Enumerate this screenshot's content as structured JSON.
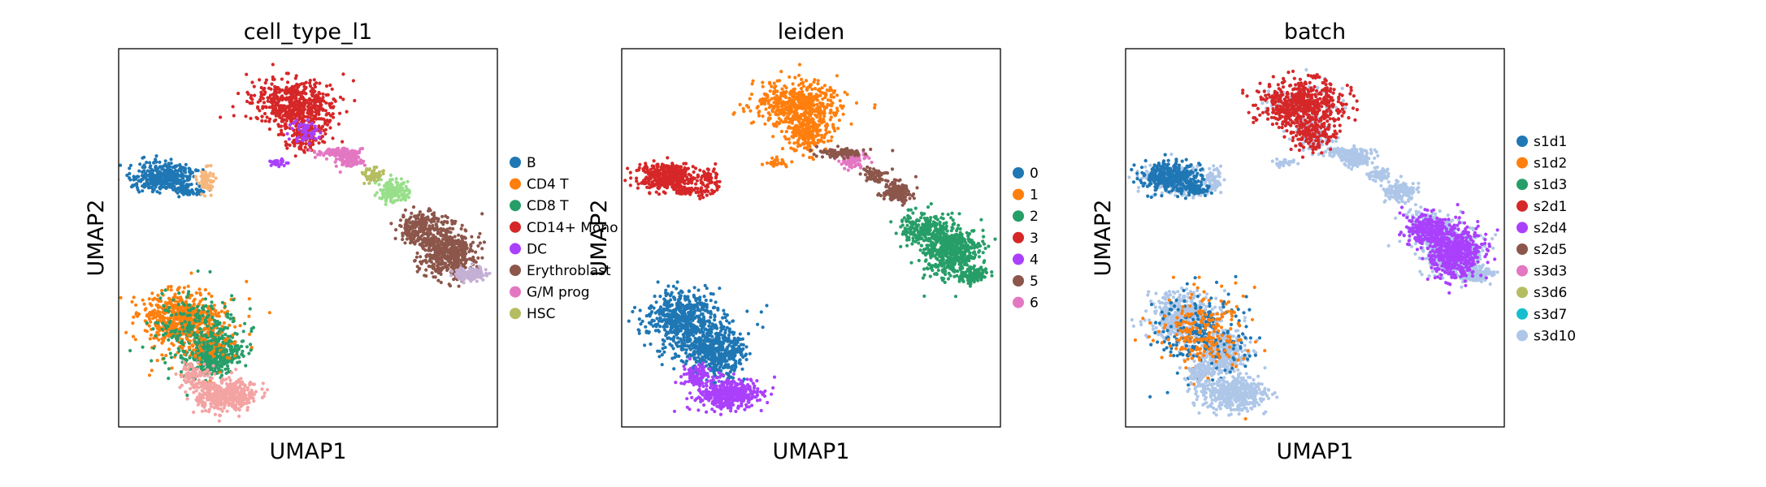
{
  "chart_data": [
    {
      "type": "scatter",
      "title": "cell_type_l1",
      "xlabel": "UMAP1",
      "ylabel": "UMAP2",
      "legend_position": "right",
      "grid": false,
      "legend": [
        {
          "label": "B",
          "color": "#1f77b4"
        },
        {
          "label": "CD4 T",
          "color": "#ff7f0e"
        },
        {
          "label": "CD8 T",
          "color": "#279e68"
        },
        {
          "label": "CD14+ Mono",
          "color": "#d62728"
        },
        {
          "label": "DC",
          "color": "#aa40fc"
        },
        {
          "label": "Erythroblast",
          "color": "#8c564b"
        },
        {
          "label": "G/M prog",
          "color": "#e377c2"
        },
        {
          "label": "HSC",
          "color": "#b5bd61"
        }
      ]
    },
    {
      "type": "scatter",
      "title": "leiden",
      "xlabel": "UMAP1",
      "ylabel": "UMAP2",
      "legend_position": "right",
      "grid": false,
      "legend": [
        {
          "label": "0",
          "color": "#1f77b4"
        },
        {
          "label": "1",
          "color": "#ff7f0e"
        },
        {
          "label": "2",
          "color": "#279e68"
        },
        {
          "label": "3",
          "color": "#d62728"
        },
        {
          "label": "4",
          "color": "#aa40fc"
        },
        {
          "label": "5",
          "color": "#8c564b"
        },
        {
          "label": "6",
          "color": "#e377c2"
        }
      ]
    },
    {
      "type": "scatter",
      "title": "batch",
      "xlabel": "UMAP1",
      "ylabel": "UMAP2",
      "legend_position": "right",
      "grid": false,
      "legend": [
        {
          "label": "s1d1",
          "color": "#1f77b4"
        },
        {
          "label": "s1d2",
          "color": "#ff7f0e"
        },
        {
          "label": "s1d3",
          "color": "#279e68"
        },
        {
          "label": "s2d1",
          "color": "#d62728"
        },
        {
          "label": "s2d4",
          "color": "#aa40fc"
        },
        {
          "label": "s2d5",
          "color": "#8c564b"
        },
        {
          "label": "s3d3",
          "color": "#e377c2"
        },
        {
          "label": "s3d6",
          "color": "#b5bd61"
        },
        {
          "label": "s3d7",
          "color": "#17becf"
        },
        {
          "label": "s3d10",
          "color": "#aec7e8"
        }
      ]
    }
  ]
}
